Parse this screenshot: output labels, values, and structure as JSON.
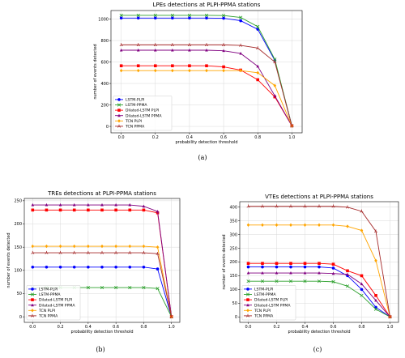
{
  "chart_data": [
    {
      "type": "line",
      "title": "LPEs detections at PLPI-PPMA stations",
      "xlabel": "probability detection threshold",
      "ylabel": "number of events detected",
      "caption": "(a)",
      "xlim": [
        -0.06,
        1.06
      ],
      "ylim": [
        -60,
        1080
      ],
      "xticks": [
        0.0,
        0.2,
        0.4,
        0.6,
        0.8,
        1.0
      ],
      "yticks": [
        0,
        200,
        400,
        600,
        800,
        1000
      ],
      "grid": true,
      "legend": "lower-left",
      "x": [
        0.0,
        0.1,
        0.2,
        0.3,
        0.4,
        0.5,
        0.6,
        0.7,
        0.8,
        0.9,
        1.0
      ],
      "series": [
        {
          "name": "LSTM-PLPI",
          "color": "#0000ff",
          "marker": "circle",
          "values": [
            1010,
            1010,
            1010,
            1010,
            1010,
            1010,
            1008,
            985,
            905,
            615,
            5
          ]
        },
        {
          "name": "LSTM-PPMA",
          "color": "#2ca02c",
          "marker": "cross",
          "values": [
            1035,
            1035,
            1035,
            1035,
            1035,
            1035,
            1033,
            1015,
            930,
            625,
            5
          ]
        },
        {
          "name": "Dilated-LSTM PLPI",
          "color": "#ff0000",
          "marker": "square",
          "values": [
            565,
            565,
            565,
            565,
            565,
            565,
            555,
            525,
            435,
            275,
            5
          ]
        },
        {
          "name": "Dilated-LSTM PPMA",
          "color": "#800080",
          "marker": "triangle",
          "values": [
            710,
            710,
            710,
            710,
            710,
            710,
            705,
            680,
            560,
            285,
            5
          ]
        },
        {
          "name": "TCN PLPI",
          "color": "#ffa500",
          "marker": "diamond",
          "values": [
            520,
            520,
            520,
            520,
            520,
            520,
            520,
            520,
            500,
            380,
            5
          ]
        },
        {
          "name": "TCN PPMA",
          "color": "#a52a2a",
          "marker": "tri",
          "values": [
            760,
            760,
            760,
            760,
            760,
            760,
            760,
            755,
            730,
            600,
            5
          ]
        }
      ]
    },
    {
      "type": "line",
      "title": "TREs detections at PLPI-PPMA stations",
      "xlabel": "probability detection threshold",
      "ylabel": "number of events detected",
      "caption": "(b)",
      "xlim": [
        -0.06,
        1.06
      ],
      "ylim": [
        -12,
        255
      ],
      "xticks": [
        0.0,
        0.2,
        0.4,
        0.6,
        0.8,
        1.0
      ],
      "yticks": [
        0,
        50,
        100,
        150,
        200,
        250
      ],
      "grid": true,
      "legend": "lower-left",
      "x": [
        0.0,
        0.1,
        0.2,
        0.3,
        0.4,
        0.5,
        0.6,
        0.7,
        0.8,
        0.9,
        1.0
      ],
      "series": [
        {
          "name": "LSTM-PLPI",
          "color": "#0000ff",
          "marker": "circle",
          "values": [
            107,
            107,
            107,
            107,
            107,
            107,
            107,
            107,
            107,
            103,
            0
          ]
        },
        {
          "name": "LSTM-PPMA",
          "color": "#2ca02c",
          "marker": "cross",
          "values": [
            63,
            63,
            63,
            63,
            63,
            63,
            63,
            63,
            63,
            61,
            0
          ]
        },
        {
          "name": "Dilated-LSTM PLPI",
          "color": "#ff0000",
          "marker": "square",
          "values": [
            230,
            230,
            230,
            230,
            230,
            230,
            230,
            230,
            230,
            224,
            0
          ]
        },
        {
          "name": "Dilated-LSTM PPMA",
          "color": "#800080",
          "marker": "triangle",
          "values": [
            241,
            241,
            241,
            241,
            241,
            241,
            241,
            241,
            238,
            227,
            0
          ]
        },
        {
          "name": "TCN PLPI",
          "color": "#ffa500",
          "marker": "diamond",
          "values": [
            152,
            152,
            152,
            152,
            152,
            152,
            152,
            152,
            152,
            150,
            0
          ]
        },
        {
          "name": "TCN PPMA",
          "color": "#a52a2a",
          "marker": "tri",
          "values": [
            138,
            138,
            138,
            138,
            138,
            138,
            138,
            138,
            138,
            136,
            0
          ]
        }
      ]
    },
    {
      "type": "line",
      "title": "VTEs detections at PLPI-PPMA stations",
      "xlabel": "probability detection threshold",
      "ylabel": "number of events detected",
      "caption": "(c)",
      "xlim": [
        -0.06,
        1.06
      ],
      "ylim": [
        -20,
        420
      ],
      "xticks": [
        0.0,
        0.2,
        0.4,
        0.6,
        0.8,
        1.0
      ],
      "yticks": [
        0,
        50,
        100,
        150,
        200,
        250,
        300,
        350,
        400
      ],
      "grid": true,
      "legend": "lower-left",
      "x": [
        0.0,
        0.1,
        0.2,
        0.3,
        0.4,
        0.5,
        0.6,
        0.7,
        0.8,
        0.9,
        1.0
      ],
      "series": [
        {
          "name": "LSTM-PLPI",
          "color": "#0000ff",
          "marker": "circle",
          "values": [
            182,
            182,
            182,
            182,
            182,
            182,
            178,
            150,
            100,
            35,
            0
          ]
        },
        {
          "name": "LSTM-PPMA",
          "color": "#2ca02c",
          "marker": "cross",
          "values": [
            130,
            130,
            130,
            130,
            130,
            130,
            128,
            112,
            78,
            28,
            0
          ]
        },
        {
          "name": "Dilated-LSTM PLPI",
          "color": "#ff0000",
          "marker": "square",
          "values": [
            195,
            195,
            195,
            195,
            195,
            195,
            192,
            168,
            150,
            78,
            0
          ]
        },
        {
          "name": "Dilated-LSTM PPMA",
          "color": "#800080",
          "marker": "triangle",
          "values": [
            160,
            160,
            160,
            160,
            160,
            160,
            158,
            155,
            120,
            60,
            0
          ]
        },
        {
          "name": "TCN PLPI",
          "color": "#ffa500",
          "marker": "diamond",
          "values": [
            335,
            335,
            335,
            335,
            335,
            335,
            335,
            330,
            315,
            205,
            0
          ]
        },
        {
          "name": "TCN PPMA",
          "color": "#a52a2a",
          "marker": "tri",
          "values": [
            403,
            403,
            403,
            403,
            403,
            403,
            403,
            400,
            385,
            312,
            0
          ]
        }
      ]
    }
  ]
}
